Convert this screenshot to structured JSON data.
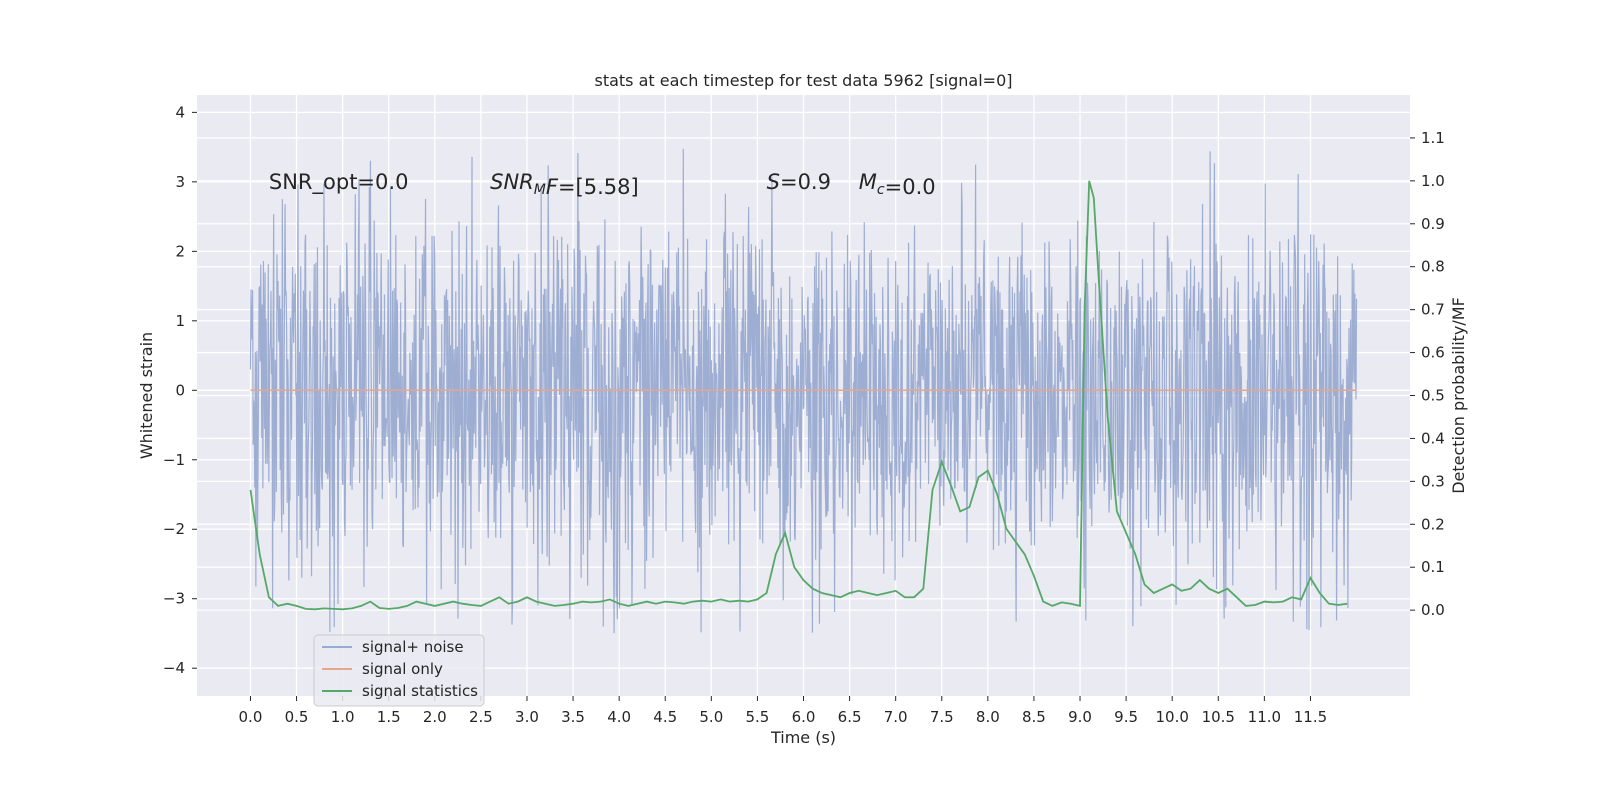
{
  "chart_data": {
    "type": "line",
    "title": "stats at each timestep for test data 5962 [signal=0]",
    "xlabel": "Time (s)",
    "ylabel_left": "Whitened strain",
    "ylabel_right": "Detection probability/MF",
    "xlim": [
      -0.58,
      12.58
    ],
    "ylim_left": [
      -4.4,
      4.25
    ],
    "ylim_right": [
      -0.2,
      1.2
    ],
    "grid": true,
    "legend_position": "lower-left",
    "x_ticks": [
      "0.0",
      "0.5",
      "1.0",
      "1.5",
      "2.0",
      "2.5",
      "3.0",
      "3.5",
      "4.0",
      "4.5",
      "5.0",
      "5.5",
      "6.0",
      "6.5",
      "7.0",
      "7.5",
      "8.0",
      "8.5",
      "9.0",
      "9.5",
      "10.0",
      "10.5",
      "11.0",
      "11.5"
    ],
    "y_ticks_left": [
      "−4",
      "−3",
      "−2",
      "−1",
      "0",
      "1",
      "2",
      "3",
      "4"
    ],
    "y_ticks_right": [
      "0.0",
      "0.1",
      "0.2",
      "0.3",
      "0.4",
      "0.5",
      "0.6",
      "0.7",
      "0.8",
      "0.9",
      "1.0",
      "1.1"
    ],
    "annotations": [
      {
        "id": "snr-opt",
        "prefix": "SNR_opt=0.0",
        "x": 0.2,
        "y": 3.0
      },
      {
        "id": "snr-mf",
        "sym": "SNR",
        "sub": "M",
        "sym2": "F",
        "rest": "=[5.58]",
        "x": 2.6,
        "y": 3.0
      },
      {
        "id": "s-stat",
        "sym": "S",
        "rest": "=0.9",
        "x": 5.6,
        "y": 3.0
      },
      {
        "id": "mc",
        "sym": "M",
        "sub": "c",
        "rest": "=0.0",
        "x": 6.6,
        "y": 3.0
      }
    ],
    "series": [
      {
        "name": "signal+ noise",
        "axis": "left",
        "color": "#9aabd1",
        "duration": 12.0,
        "samples": 2048,
        "envelope_typical": [
          -1.6,
          1.6
        ],
        "peak_extremes": [
          -3.6,
          3.85
        ]
      },
      {
        "name": "signal only",
        "axis": "left",
        "color": "#e7a58b",
        "x": [
          0.0,
          12.0
        ],
        "y": [
          0.0,
          0.0
        ]
      },
      {
        "name": "signal statistics",
        "axis": "right",
        "color": "#55a868",
        "x": [
          0.0,
          0.1,
          0.2,
          0.3,
          0.4,
          0.5,
          0.6,
          0.7,
          0.8,
          0.9,
          1.0,
          1.1,
          1.2,
          1.3,
          1.4,
          1.5,
          1.6,
          1.7,
          1.8,
          1.9,
          2.0,
          2.1,
          2.2,
          2.3,
          2.4,
          2.5,
          2.6,
          2.7,
          2.8,
          2.9,
          3.0,
          3.1,
          3.2,
          3.3,
          3.4,
          3.5,
          3.6,
          3.7,
          3.8,
          3.9,
          4.0,
          4.1,
          4.2,
          4.3,
          4.4,
          4.5,
          4.6,
          4.7,
          4.8,
          4.9,
          5.0,
          5.1,
          5.2,
          5.3,
          5.4,
          5.5,
          5.6,
          5.7,
          5.8,
          5.9,
          6.0,
          6.1,
          6.2,
          6.3,
          6.4,
          6.5,
          6.6,
          6.7,
          6.8,
          6.9,
          7.0,
          7.1,
          7.2,
          7.3,
          7.4,
          7.5,
          7.6,
          7.7,
          7.8,
          7.9,
          8.0,
          8.1,
          8.2,
          8.3,
          8.4,
          8.5,
          8.6,
          8.7,
          8.8,
          8.9,
          9.0,
          9.05,
          9.1,
          9.15,
          9.2,
          9.3,
          9.4,
          9.5,
          9.6,
          9.7,
          9.8,
          9.9,
          10.0,
          10.1,
          10.2,
          10.3,
          10.4,
          10.5,
          10.6,
          10.7,
          10.8,
          10.9,
          11.0,
          11.1,
          11.2,
          11.3,
          11.4,
          11.5,
          11.6,
          11.7,
          11.8,
          11.9
        ],
        "y": [
          0.28,
          0.13,
          0.03,
          0.01,
          0.015,
          0.01,
          0.003,
          0.002,
          0.004,
          0.003,
          0.002,
          0.004,
          0.01,
          0.02,
          0.005,
          0.003,
          0.005,
          0.01,
          0.02,
          0.015,
          0.01,
          0.015,
          0.02,
          0.015,
          0.012,
          0.01,
          0.02,
          0.03,
          0.015,
          0.02,
          0.03,
          0.02,
          0.015,
          0.01,
          0.012,
          0.015,
          0.02,
          0.018,
          0.02,
          0.025,
          0.015,
          0.01,
          0.015,
          0.02,
          0.015,
          0.02,
          0.018,
          0.015,
          0.02,
          0.022,
          0.02,
          0.025,
          0.02,
          0.022,
          0.02,
          0.025,
          0.04,
          0.13,
          0.18,
          0.1,
          0.07,
          0.05,
          0.04,
          0.035,
          0.03,
          0.04,
          0.045,
          0.04,
          0.035,
          0.04,
          0.045,
          0.03,
          0.03,
          0.05,
          0.28,
          0.345,
          0.29,
          0.23,
          0.24,
          0.31,
          0.325,
          0.27,
          0.19,
          0.16,
          0.13,
          0.08,
          0.02,
          0.01,
          0.018,
          0.015,
          0.01,
          0.7,
          1.0,
          0.96,
          0.78,
          0.45,
          0.23,
          0.18,
          0.13,
          0.06,
          0.04,
          0.05,
          0.06,
          0.045,
          0.05,
          0.07,
          0.05,
          0.04,
          0.05,
          0.03,
          0.01,
          0.012,
          0.02,
          0.018,
          0.02,
          0.03,
          0.025,
          0.075,
          0.04,
          0.015,
          0.012,
          0.015
        ]
      }
    ]
  }
}
